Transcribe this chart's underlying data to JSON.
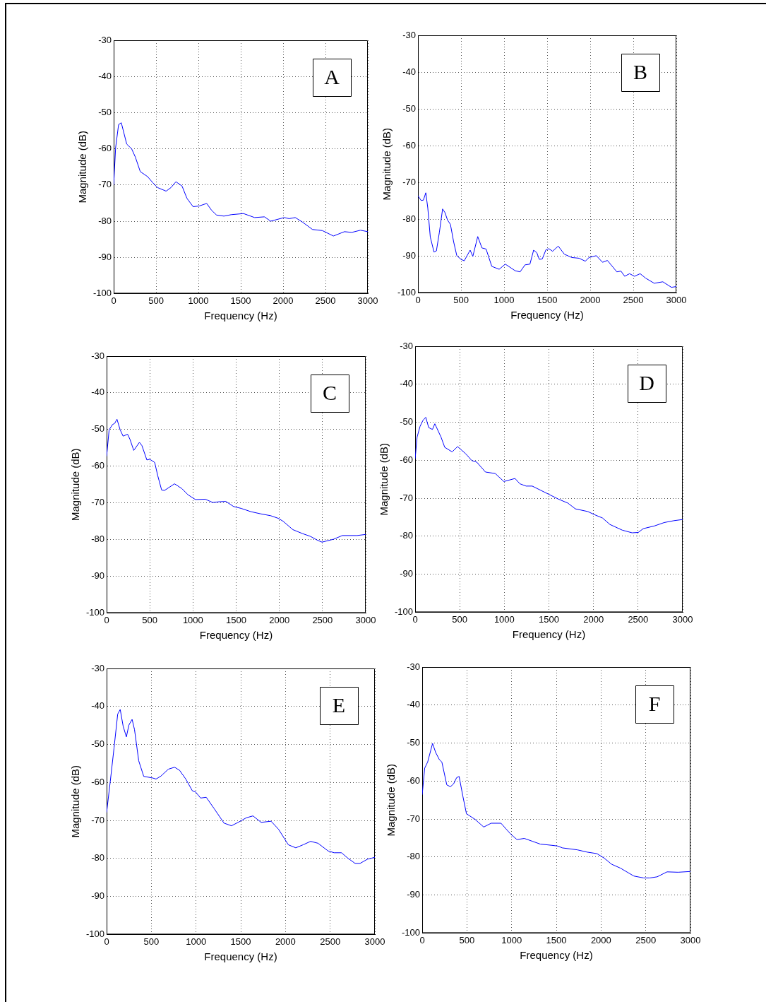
{
  "chart_data": [
    {
      "type": "line",
      "annotations": [
        "A"
      ],
      "xlabel": "Frequency (Hz)",
      "ylabel": "Magnitude (dB)",
      "xlim": [
        0,
        3000
      ],
      "xticks": [
        0,
        500,
        1000,
        1500,
        2000,
        2500,
        3000
      ],
      "ylim": [
        -100,
        -30
      ],
      "yticks": [
        -100,
        -90,
        -80,
        -70,
        -60,
        -50,
        -40,
        -30
      ],
      "grid": true,
      "series": [
        {
          "color": "#0000ff",
          "x": [
            0,
            23,
            58,
            90,
            154,
            212,
            256,
            314,
            401,
            459,
            517,
            619,
            677,
            735,
            807,
            865,
            938,
            1010,
            1098,
            1156,
            1214,
            1301,
            1388,
            1533,
            1664,
            1780,
            1853,
            2013,
            2071,
            2144,
            2231,
            2347,
            2463,
            2594,
            2724,
            2811,
            2913,
            3000
          ],
          "values": [
            -70,
            -59.7,
            -53.3,
            -52.8,
            -58.7,
            -60,
            -62.3,
            -66.3,
            -67.7,
            -69.3,
            -70.7,
            -71.7,
            -70.7,
            -69.1,
            -70.3,
            -73.7,
            -76,
            -75.8,
            -75.1,
            -77,
            -78.3,
            -78.6,
            -78.2,
            -77.9,
            -79,
            -78.8,
            -80,
            -79,
            -79.3,
            -79,
            -80.3,
            -82.3,
            -82.6,
            -84.1,
            -82.9,
            -83.1,
            -82.5,
            -82.9
          ]
        }
      ]
    },
    {
      "type": "line",
      "annotations": [
        "B"
      ],
      "xlabel": "Frequency (Hz)",
      "ylabel": "Magnitude (dB)",
      "xlim": [
        0,
        3000
      ],
      "xticks": [
        0,
        500,
        1000,
        1500,
        2000,
        2500,
        3000
      ],
      "ylim": [
        -100,
        -30
      ],
      "yticks": [
        -100,
        -90,
        -80,
        -70,
        -60,
        -50,
        -40,
        -30
      ],
      "grid": true,
      "series": [
        {
          "color": "#0000ff",
          "x": [
            0,
            37,
            63,
            91,
            114,
            143,
            186,
            214,
            249,
            286,
            314,
            343,
            377,
            414,
            451,
            500,
            537,
            606,
            637,
            694,
            743,
            791,
            857,
            943,
            1014,
            1129,
            1186,
            1243,
            1300,
            1343,
            1380,
            1409,
            1443,
            1486,
            1520,
            1563,
            1629,
            1700,
            1786,
            1871,
            1943,
            1986,
            2071,
            2143,
            2200,
            2309,
            2357,
            2400,
            2457,
            2514,
            2580,
            2643,
            2743,
            2843,
            2943,
            3000
          ],
          "values": [
            -73.6,
            -74.9,
            -74.8,
            -72.8,
            -76.9,
            -84.8,
            -88.9,
            -88.6,
            -83.5,
            -77.2,
            -78.2,
            -80.2,
            -81.4,
            -86.1,
            -89.9,
            -90.9,
            -91.3,
            -88.4,
            -90.1,
            -84.7,
            -87.8,
            -88.1,
            -92.8,
            -93.6,
            -92.2,
            -94,
            -94.3,
            -92.4,
            -92.2,
            -88.4,
            -89.1,
            -90.9,
            -90.8,
            -88.3,
            -88,
            -88.7,
            -87.3,
            -89.5,
            -90.4,
            -90.6,
            -91.4,
            -90.4,
            -89.9,
            -91.7,
            -91.2,
            -94.3,
            -94.1,
            -95.5,
            -94.8,
            -95.5,
            -94.8,
            -96,
            -97.4,
            -97,
            -98.5,
            -98.3
          ]
        }
      ]
    },
    {
      "type": "line",
      "annotations": [
        "C"
      ],
      "xlabel": "Frequency (Hz)",
      "ylabel": "Magnitude (dB)",
      "xlim": [
        0,
        3000
      ],
      "xticks": [
        0,
        500,
        1000,
        1500,
        2000,
        2500,
        3000
      ],
      "ylim": [
        -100,
        -30
      ],
      "yticks": [
        -100,
        -90,
        -80,
        -70,
        -60,
        -50,
        -40,
        -30
      ],
      "grid": true,
      "series": [
        {
          "color": "#0000ff",
          "x": [
            0,
            29,
            66,
            94,
            120,
            157,
            191,
            243,
            271,
            314,
            380,
            409,
            466,
            500,
            557,
            591,
            637,
            671,
            786,
            871,
            943,
            1029,
            1143,
            1229,
            1300,
            1380,
            1471,
            1557,
            1671,
            1786,
            1900,
            1986,
            2043,
            2157,
            2271,
            2357,
            2443,
            2494,
            2629,
            2729,
            2900,
            3000
          ],
          "values": [
            -57.3,
            -50.1,
            -48.7,
            -48.3,
            -47.2,
            -50.1,
            -51.8,
            -51.3,
            -52.7,
            -55.7,
            -53.5,
            -54.4,
            -58.3,
            -58.1,
            -59,
            -62.5,
            -66.5,
            -66.6,
            -64.8,
            -66.1,
            -67.8,
            -69.1,
            -69,
            -69.9,
            -69.7,
            -69.6,
            -71,
            -71.5,
            -72.4,
            -73,
            -73.5,
            -74.2,
            -75,
            -77.3,
            -78.4,
            -79.1,
            -80.2,
            -80.7,
            -79.9,
            -78.9,
            -78.9,
            -78.6
          ]
        }
      ]
    },
    {
      "type": "line",
      "annotations": [
        "D"
      ],
      "xlabel": "Frequency (Hz)",
      "ylabel": "Magnitude (dB)",
      "xlim": [
        0,
        3000
      ],
      "xticks": [
        0,
        500,
        1000,
        1500,
        2000,
        2500,
        3000
      ],
      "ylim": [
        -100,
        -30
      ],
      "yticks": [
        -100,
        -90,
        -80,
        -70,
        -60,
        -50,
        -40,
        -30
      ],
      "grid": true,
      "series": [
        {
          "color": "#0000ff",
          "x": [
            0,
            22,
            55,
            88,
            119,
            152,
            194,
            221,
            290,
            332,
            415,
            476,
            567,
            636,
            691,
            788,
            899,
            995,
            1120,
            1175,
            1244,
            1313,
            1493,
            1604,
            1714,
            1797,
            1936,
            2018,
            2101,
            2184,
            2323,
            2433,
            2502,
            2558,
            2682,
            2793,
            2903,
            3000
          ],
          "values": [
            -59.6,
            -53.9,
            -51.1,
            -49.5,
            -48.7,
            -51.4,
            -51.9,
            -50.4,
            -53.9,
            -56.6,
            -57.8,
            -56.4,
            -58.3,
            -60.1,
            -60.5,
            -63.1,
            -63.5,
            -65.6,
            -64.8,
            -66.2,
            -66.8,
            -66.8,
            -68.9,
            -70.2,
            -71.3,
            -72.8,
            -73.5,
            -74.4,
            -75.2,
            -76.9,
            -78.4,
            -79.1,
            -79,
            -78,
            -77.3,
            -76.4,
            -75.9,
            -75.6
          ]
        }
      ]
    },
    {
      "type": "line",
      "annotations": [
        "E"
      ],
      "xlabel": "Frequency (Hz)",
      "ylabel": "Magnitude (dB)",
      "xlim": [
        0,
        3000
      ],
      "xticks": [
        0,
        500,
        1000,
        1500,
        2000,
        2500,
        3000
      ],
      "ylim": [
        -100,
        -30
      ],
      "yticks": [
        -100,
        -90,
        -80,
        -70,
        -60,
        -50,
        -40,
        -30
      ],
      "grid": true,
      "series": [
        {
          "color": "#0000ff",
          "x": [
            0,
            41,
            83,
            124,
            152,
            185,
            221,
            249,
            285,
            312,
            359,
            415,
            512,
            553,
            608,
            691,
            760,
            816,
            885,
            959,
            995,
            1051,
            1114,
            1203,
            1313,
            1396,
            1479,
            1562,
            1637,
            1728,
            1839,
            1922,
            2032,
            2115,
            2198,
            2281,
            2364,
            2475,
            2544,
            2627,
            2696,
            2779,
            2834,
            2917,
            3000
          ],
          "values": [
            -67.9,
            -59.7,
            -50.9,
            -42,
            -40.8,
            -45.2,
            -48,
            -44.9,
            -43.4,
            -46.1,
            -54.3,
            -58.4,
            -58.8,
            -59.1,
            -58.3,
            -56.5,
            -56,
            -56.8,
            -59.1,
            -62.2,
            -62.5,
            -64.1,
            -63.9,
            -66.9,
            -70.7,
            -71.4,
            -70.4,
            -69.3,
            -68.8,
            -70.5,
            -70.2,
            -72.3,
            -76.4,
            -77.2,
            -76.4,
            -75.5,
            -76,
            -78,
            -78.5,
            -78.5,
            -79.9,
            -81.3,
            -81.3,
            -80.2,
            -79.7
          ]
        }
      ]
    },
    {
      "type": "line",
      "annotations": [
        "F"
      ],
      "xlabel": "Frequency (Hz)",
      "ylabel": "Magnitude (dB)",
      "xlim": [
        0,
        3000
      ],
      "xticks": [
        0,
        500,
        1000,
        1500,
        2000,
        2500,
        3000
      ],
      "ylim": [
        -100,
        -30
      ],
      "yticks": [
        -100,
        -90,
        -80,
        -70,
        -60,
        -50,
        -40,
        -30
      ],
      "grid": true,
      "series": [
        {
          "color": "#0000ff",
          "x": [
            0,
            28,
            61,
            116,
            151,
            193,
            220,
            275,
            316,
            352,
            385,
            413,
            454,
            495,
            592,
            688,
            771,
            881,
            991,
            1060,
            1142,
            1238,
            1321,
            1445,
            1514,
            1569,
            1734,
            1844,
            1954,
            2036,
            2119,
            2215,
            2367,
            2477,
            2546,
            2628,
            2738,
            2862,
            3000
          ],
          "values": [
            -63.6,
            -56.6,
            -55,
            -50.1,
            -52.5,
            -54.4,
            -55,
            -61,
            -61.5,
            -60.7,
            -59.1,
            -58.8,
            -63.9,
            -68.6,
            -70.1,
            -72.1,
            -71.1,
            -71.1,
            -74,
            -75.4,
            -75.1,
            -75.9,
            -76.6,
            -76.9,
            -77.1,
            -77.6,
            -78.1,
            -78.7,
            -79.1,
            -80.3,
            -81.9,
            -82.9,
            -85,
            -85.5,
            -85.5,
            -85.2,
            -83.9,
            -84,
            -83.8
          ]
        }
      ]
    }
  ]
}
